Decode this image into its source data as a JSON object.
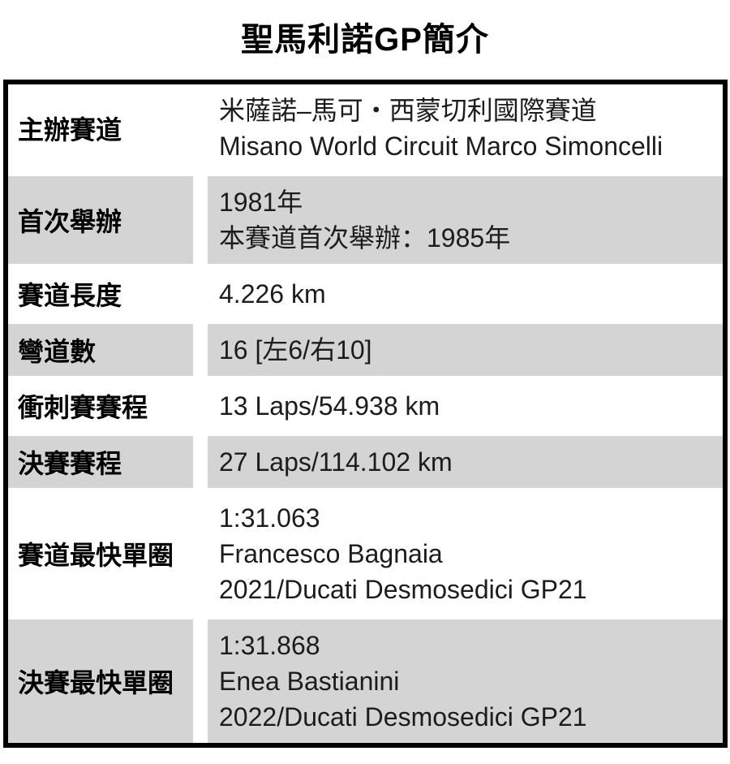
{
  "title": "聖馬利諾GP簡介",
  "colors": {
    "page_background": "#ffffff",
    "table_border": "#000000",
    "row_shade": "#d4d4d4",
    "title_text": "#000000",
    "label_text": "#000000",
    "value_text": "#1c1c1c"
  },
  "table": {
    "rows": [
      {
        "label": "主辦賽道",
        "lines": [
          "米薩諾–馬可・西蒙切利國際賽道",
          "Misano World Circuit Marco Simoncelli"
        ]
      },
      {
        "label": "首次舉辦",
        "lines": [
          "1981年",
          "本賽道首次舉辦：1985年"
        ]
      },
      {
        "label": "賽道長度",
        "lines": [
          "4.226 km"
        ]
      },
      {
        "label": "彎道數",
        "lines": [
          "16 [左6/右10]"
        ]
      },
      {
        "label": "衝刺賽賽程",
        "lines": [
          "13 Laps/54.938 km"
        ]
      },
      {
        "label": "決賽賽程",
        "lines": [
          "27 Laps/114.102 km"
        ]
      },
      {
        "label": "賽道最快單圈",
        "lines": [
          "1:31.063",
          "Francesco Bagnaia",
          "2021/Ducati Desmosedici GP21"
        ]
      },
      {
        "label": "決賽最快單圈",
        "lines": [
          "1:31.868",
          "Enea Bastianini",
          "2022/Ducati Desmosedici GP21"
        ]
      }
    ]
  }
}
